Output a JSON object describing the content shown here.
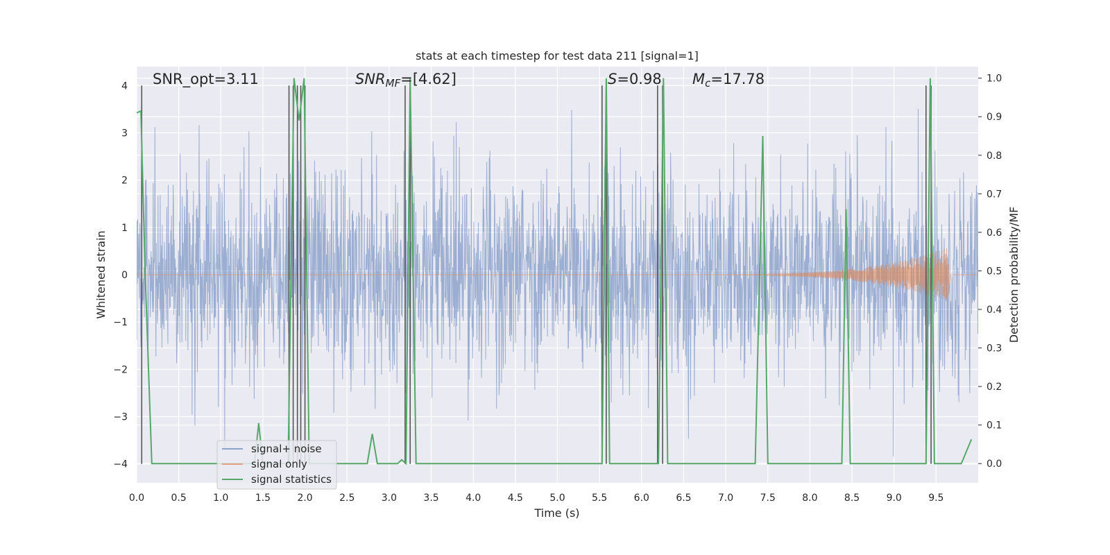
{
  "chart_data": {
    "type": "line",
    "title": "stats at each timestep for test data 211 [signal=1]",
    "xlabel": "Time (s)",
    "ylabel_left": "Whitened strain",
    "ylabel_right": "Detection probability/MF",
    "xlim": [
      0,
      10
    ],
    "ylim_left": [
      -4.4,
      4.4
    ],
    "ylim_right": [
      -0.05,
      1.03
    ],
    "x_ticks": [
      0.0,
      0.5,
      1.0,
      1.5,
      2.0,
      2.5,
      3.0,
      3.5,
      4.0,
      4.5,
      5.0,
      5.5,
      6.0,
      6.5,
      7.0,
      7.5,
      8.0,
      8.5,
      9.0,
      9.5
    ],
    "x_tick_labels": [
      "0.0",
      "0.5",
      "1.0",
      "1.5",
      "2.0",
      "2.5",
      "3.0",
      "3.5",
      "4.0",
      "4.5",
      "5.0",
      "5.5",
      "6.0",
      "6.5",
      "7.0",
      "7.5",
      "8.0",
      "8.5",
      "9.0",
      "9.5"
    ],
    "y_left_ticks": [
      4,
      3,
      2,
      1,
      0,
      -1,
      -2,
      -3,
      -4
    ],
    "y_left_tick_labels": [
      "4",
      "3",
      "2",
      "1",
      "0",
      "−1",
      "−2",
      "−3",
      "−4"
    ],
    "y_right_ticks": [
      1.0,
      0.9,
      0.8,
      0.7,
      0.6,
      0.5,
      0.4,
      0.3,
      0.2,
      0.1,
      0.0
    ],
    "y_right_tick_labels": [
      "1.0",
      "0.9",
      "0.8",
      "0.7",
      "0.6",
      "0.5",
      "0.4",
      "0.3",
      "0.2",
      "0.1",
      "0.0"
    ],
    "grid": true,
    "legend_position": "lower-left",
    "legend": [
      "signal+ noise",
      "signal only",
      "signal statistics"
    ],
    "colors": {
      "background": "#eaeaf2",
      "noise": "#4c72b0",
      "signal": "#dd8452",
      "statistics": "#55a868",
      "markers": "#555555"
    },
    "annotations": {
      "snr_opt": "SNR_opt=3.11",
      "snr_mf_main": "SNR",
      "snr_mf_sub": "MF",
      "snr_mf_val": "=[4.62]",
      "s_sym": "S",
      "s_val": "=0.98",
      "mc_main": "M",
      "mc_sub": "c",
      "mc_val": "=17.78"
    },
    "signal_only": {
      "start": 6.0,
      "end": 9.65,
      "peak_amplitude": 0.58
    },
    "marker_lines": [
      0.06,
      1.81,
      1.86,
      1.91,
      1.95,
      2.0,
      3.19,
      3.25,
      5.53,
      5.58,
      6.19,
      6.25,
      9.38,
      9.44
    ],
    "statistics_series": {
      "x": [
        0.0,
        0.05,
        0.1,
        0.18,
        0.5,
        1.0,
        1.4,
        1.45,
        1.5,
        1.75,
        1.8,
        1.87,
        1.93,
        1.99,
        2.05,
        2.12,
        2.5,
        2.74,
        2.8,
        2.86,
        3.1,
        3.15,
        3.2,
        3.25,
        3.32,
        3.5,
        4.0,
        5.0,
        5.53,
        5.58,
        5.62,
        5.7,
        6.0,
        6.2,
        6.26,
        6.31,
        6.5,
        7.0,
        7.35,
        7.44,
        7.5,
        7.56,
        7.8,
        8.0,
        8.38,
        8.43,
        8.48,
        8.6,
        9.0,
        9.38,
        9.43,
        9.48,
        9.6,
        9.8,
        9.92
      ],
      "y": [
        0.91,
        0.915,
        0.5,
        0.0,
        0.0,
        0.0,
        0.0,
        0.105,
        0.0,
        0.0,
        0.0,
        1.0,
        0.89,
        1.0,
        0.0,
        0.0,
        0.0,
        0.0,
        0.077,
        0.0,
        0.0,
        0.01,
        0.0,
        1.0,
        0.0,
        0.0,
        0.0,
        0.0,
        0.0,
        1.0,
        0.0,
        0.0,
        0.0,
        0.0,
        1.0,
        0.0,
        0.0,
        0.0,
        0.0,
        0.85,
        0.0,
        0.0,
        0.0,
        0.0,
        0.0,
        0.66,
        0.0,
        0.0,
        0.0,
        0.0,
        1.0,
        0.0,
        0.0,
        0.0,
        0.063
      ]
    }
  }
}
